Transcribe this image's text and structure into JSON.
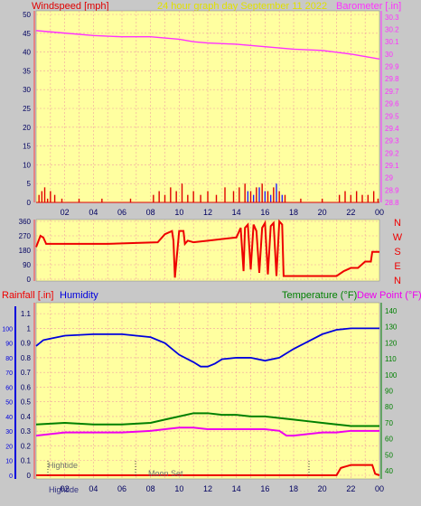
{
  "header": {
    "left_label": "Windspeed [mph]",
    "center_label": "24 hour graph day   September 11 2022",
    "right_label": "Barometer [.in]"
  },
  "colors": {
    "background": "#c8c8c8",
    "plot_bg": "#ffffa0",
    "grid": "#f0a0a0",
    "wind_axis": "#e00000",
    "barometer": "#ff30ff",
    "wind_bars": "#e00000",
    "gust_bars": "#2020ff",
    "direction": "#ee0000",
    "rain": "#ee0000",
    "humidity": "#0000dd",
    "temperature": "#008000",
    "dewpoint": "#ee00ee",
    "header_center": "#e0e000"
  },
  "x_ticks": [
    "02",
    "04",
    "06",
    "08",
    "10",
    "12",
    "14",
    "16",
    "18",
    "20",
    "22",
    "00"
  ],
  "wind_panel": {
    "y_left_ticks": [
      "0",
      "5",
      "10",
      "15",
      "20",
      "25",
      "30",
      "35",
      "40",
      "45",
      "50"
    ],
    "y_right_ticks": [
      "28.8",
      "28.9",
      "29",
      "29.1",
      "29.2",
      "29.3",
      "29.4",
      "29.5",
      "29.6",
      "29.7",
      "29.8",
      "29.9",
      "30",
      "30.1",
      "30.2",
      "30.3"
    ]
  },
  "dir_panel": {
    "y_ticks": [
      "0",
      "90",
      "180",
      "270",
      "360"
    ],
    "compass": [
      "N",
      "W",
      "S",
      "E",
      "N"
    ]
  },
  "bottom_panel": {
    "rain_label": "Rainfall [.in]",
    "humidity_label": "Humidity",
    "temp_label": "Temperature (°F)",
    "dew_label": "Dew Point (°F)",
    "y_left_ticks": [
      "0",
      "0.1",
      "0.2",
      "0.3",
      "0.4",
      "0.5",
      "0.6",
      "0.7",
      "0.8",
      "0.9",
      "1",
      "1.1"
    ],
    "y_left2_ticks": [
      "0",
      "10",
      "20",
      "30",
      "40",
      "50",
      "60",
      "70",
      "80",
      "90",
      "100"
    ],
    "y_right_ticks": [
      "40",
      "50",
      "60",
      "70",
      "80",
      "90",
      "100",
      "110",
      "120",
      "130",
      "140"
    ],
    "hightide_label": "Hightide",
    "hightide_label2": "Hightide",
    "moonset_label": "Moon Set"
  },
  "chart_data": [
    {
      "type": "line",
      "title": "24 hour graph day   September 11 2022",
      "ylabel": "Windspeed [mph]",
      "y2label": "Barometer [.in]",
      "xlim": [
        0,
        24
      ],
      "ylim": [
        0,
        50
      ],
      "y2lim": [
        28.8,
        30.35
      ],
      "series": [
        {
          "name": "Barometer",
          "axis": "right",
          "x": [
            0,
            2,
            4,
            6,
            8,
            10,
            11,
            12,
            14,
            16,
            18,
            20,
            22,
            23,
            24
          ],
          "values": [
            30.19,
            30.17,
            30.15,
            30.14,
            30.14,
            30.12,
            30.1,
            30.09,
            30.08,
            30.06,
            30.04,
            30.03,
            30.0,
            29.98,
            29.96
          ]
        },
        {
          "name": "Windspeed",
          "axis": "left",
          "style": "bars",
          "x": [
            0.2,
            0.4,
            0.6,
            0.8,
            1.0,
            1.3,
            1.8,
            3.0,
            4.6,
            6.6,
            8.2,
            8.6,
            9.0,
            9.4,
            9.8,
            10.2,
            10.6,
            11.0,
            11.5,
            12.0,
            12.6,
            13.2,
            13.8,
            14.2,
            14.6,
            15.0,
            15.4,
            15.8,
            16.2,
            16.6,
            17.0,
            17.4,
            18.5,
            20.0,
            21.2,
            21.6,
            22.0,
            22.4,
            22.8,
            23.2,
            23.6,
            23.9
          ],
          "values": [
            2,
            3,
            4,
            1,
            3,
            2,
            1,
            1,
            1,
            1,
            2,
            3,
            2,
            4,
            3,
            5,
            2,
            3,
            2,
            3,
            2,
            4,
            3,
            4,
            5,
            3,
            4,
            5,
            3,
            4,
            3,
            2,
            1,
            1,
            2,
            3,
            2,
            3,
            2,
            2,
            3,
            1
          ]
        },
        {
          "name": "Gust",
          "axis": "left",
          "style": "bars",
          "x": [
            14.8,
            15.2,
            15.6,
            16.0,
            16.4,
            16.8,
            17.2
          ],
          "values": [
            3,
            2,
            4,
            3,
            2,
            5,
            2
          ]
        }
      ]
    },
    {
      "type": "line",
      "ylabel": "Wind direction",
      "xlim": [
        0,
        24
      ],
      "ylim": [
        0,
        360
      ],
      "series": [
        {
          "name": "Direction",
          "x": [
            0,
            0.3,
            0.5,
            0.7,
            1.0,
            5,
            8.5,
            9.0,
            9.5,
            9.6,
            9.7,
            10.0,
            10.3,
            10.4,
            10.6,
            11.0,
            12.0,
            14.0,
            14.3,
            14.5,
            14.6,
            14.8,
            15.0,
            15.2,
            15.4,
            15.6,
            15.8,
            16.0,
            16.2,
            16.4,
            16.6,
            16.8,
            17.0,
            17.2,
            17.3,
            18,
            19,
            20,
            21,
            21.5,
            22,
            22.5,
            23,
            23.4,
            23.5,
            24
          ],
          "values": [
            200,
            270,
            260,
            220,
            220,
            220,
            230,
            280,
            300,
            240,
            10,
            300,
            300,
            220,
            240,
            230,
            240,
            260,
            320,
            50,
            320,
            340,
            60,
            340,
            300,
            40,
            320,
            350,
            30,
            330,
            350,
            20,
            360,
            340,
            20,
            20,
            20,
            20,
            20,
            50,
            70,
            70,
            110,
            110,
            170,
            170
          ]
        }
      ]
    },
    {
      "type": "line",
      "ylabel": "Rainfall [.in]",
      "y2label": "Temperature (°F)",
      "xlim": [
        0,
        24
      ],
      "ylim": [
        0,
        1.15
      ],
      "y2lim": [
        35,
        145
      ],
      "series": [
        {
          "name": "Rainfall",
          "axis": "left",
          "x": [
            0,
            21.0,
            21.3,
            22.0,
            23.5,
            23.7,
            24
          ],
          "values": [
            0,
            0,
            0.05,
            0.07,
            0.07,
            0.01,
            0
          ]
        },
        {
          "name": "Humidity",
          "axis": "left2",
          "x": [
            0,
            0.5,
            1,
            2,
            4,
            6,
            7,
            8,
            9,
            10,
            11,
            11.5,
            12,
            12.5,
            13,
            14,
            15,
            16,
            17,
            18,
            19,
            20,
            21,
            22,
            23,
            24
          ],
          "values": [
            88,
            92,
            93,
            95,
            96,
            96,
            95,
            94,
            90,
            82,
            77,
            74,
            74,
            76,
            79,
            80,
            80,
            78,
            80,
            86,
            91,
            96,
            99,
            100,
            100,
            100
          ]
        },
        {
          "name": "Temperature",
          "axis": "right",
          "x": [
            0,
            2,
            4,
            6,
            8,
            9,
            10,
            11,
            12,
            13,
            14,
            15,
            16,
            17,
            18,
            19,
            20,
            21,
            22,
            23,
            24
          ],
          "values": [
            69,
            70,
            69,
            69,
            70,
            72,
            74,
            76,
            76,
            75,
            75,
            74,
            74,
            73,
            72,
            71,
            70,
            69,
            68,
            68,
            68
          ]
        },
        {
          "name": "Dew Point",
          "axis": "right",
          "x": [
            0,
            2,
            4,
            6,
            8,
            9,
            10,
            11,
            12,
            13,
            14,
            15,
            16,
            17,
            17.5,
            18,
            19,
            20,
            21,
            22,
            23,
            24
          ],
          "values": [
            62,
            64,
            64,
            64,
            65,
            66,
            67,
            67,
            66,
            66,
            66,
            66,
            66,
            65,
            62,
            62,
            63,
            64,
            64,
            65,
            65,
            65
          ]
        }
      ]
    }
  ]
}
